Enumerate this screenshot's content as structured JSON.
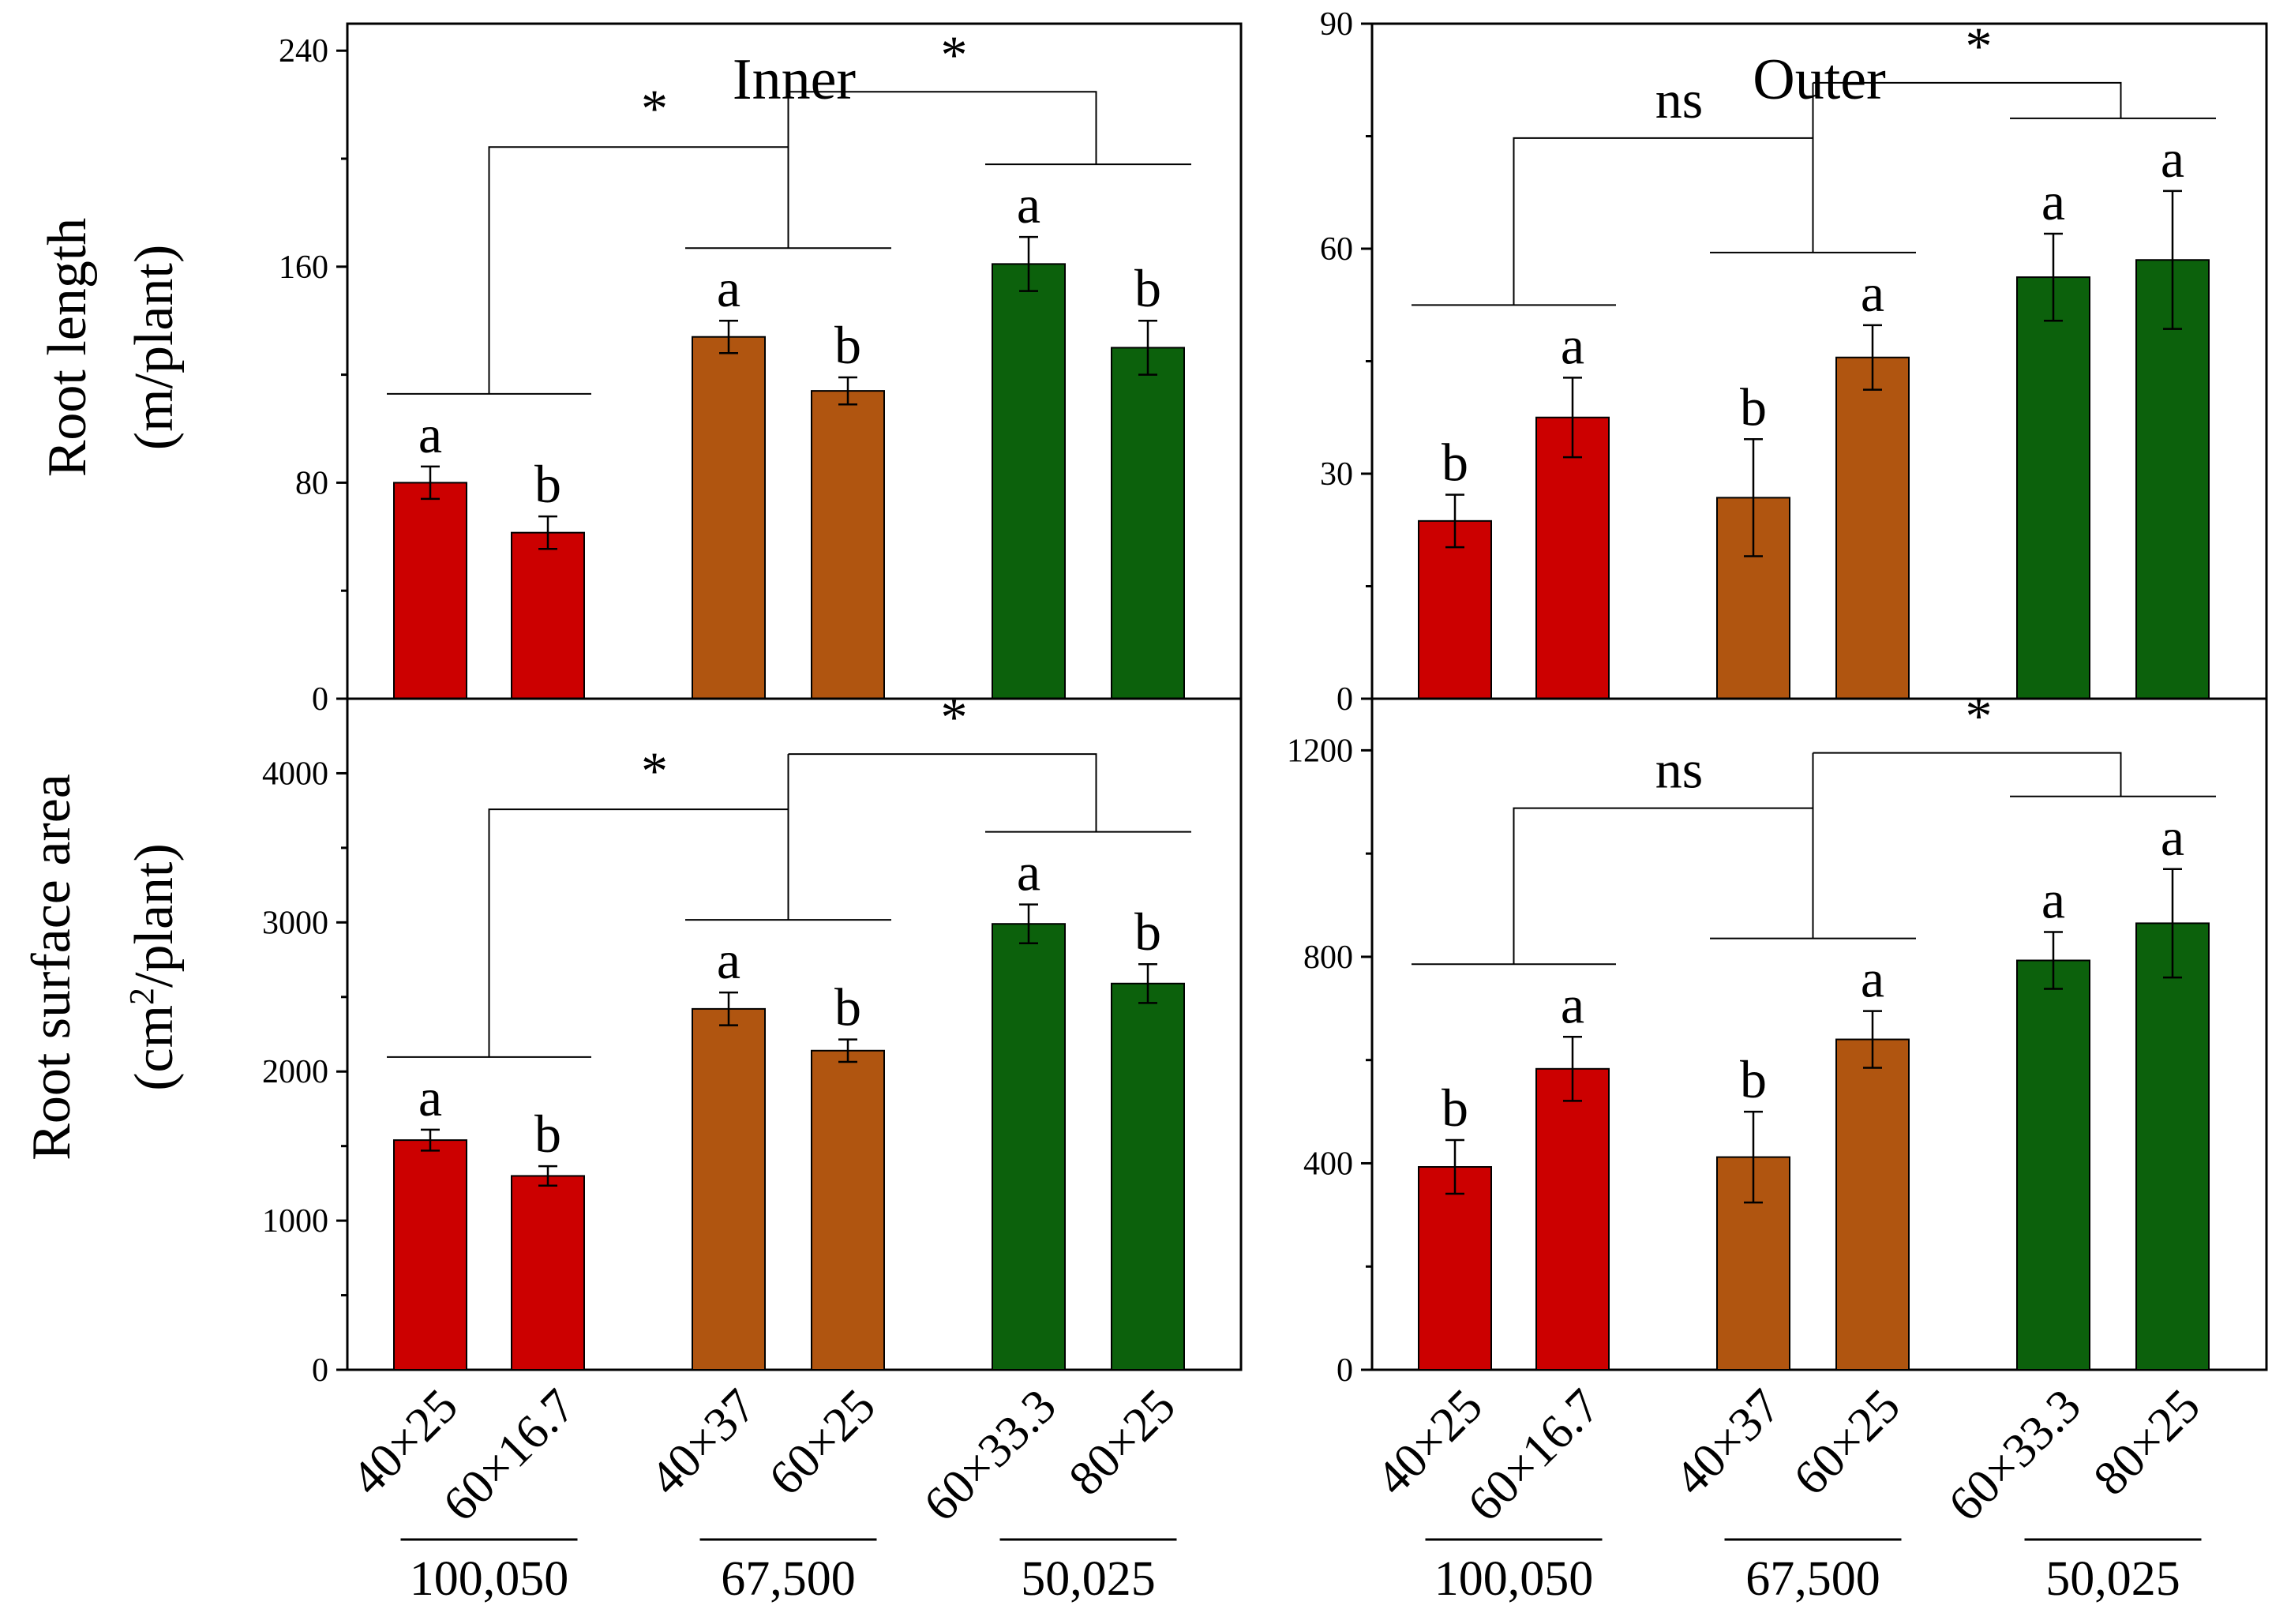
{
  "y_labels": {
    "top_line1": "Root length",
    "top_line2": "(m/plant)",
    "bottom_line1": "Root surface area",
    "bottom_line2_pre": "(cm",
    "bottom_line2_sup": "2",
    "bottom_line2_post": "/plant)"
  },
  "categories": [
    "40×25",
    "60×16.7",
    "40×37",
    "60×25",
    "60×33.3",
    "80×25"
  ],
  "groups": [
    "100,050",
    "67,500",
    "50,025"
  ],
  "colors": {
    "red": "#cc0000",
    "brown": "#b05510",
    "green": "#0c610c",
    "bar_colors": [
      "#cc0000",
      "#cc0000",
      "#b05510",
      "#b05510",
      "#0c610c",
      "#0c610c"
    ]
  },
  "chart_data": [
    {
      "type": "bar",
      "panel": "top-left",
      "title": "Inner",
      "ylabel": "Root length (m/plant)",
      "categories": [
        "40×25",
        "60×16.7",
        "40×37",
        "60×25",
        "60×33.3",
        "80×25"
      ],
      "values": [
        80,
        61.5,
        134,
        114,
        161,
        130
      ],
      "errors": [
        6,
        6,
        6,
        5,
        10,
        10
      ],
      "letters": [
        "a",
        "b",
        "a",
        "b",
        "a",
        "b"
      ],
      "ylim": [
        0,
        250
      ],
      "yticks": [
        0,
        80,
        160,
        240
      ],
      "significance": [
        "*",
        "*"
      ]
    },
    {
      "type": "bar",
      "panel": "top-right",
      "title": "Outer",
      "ylabel": "",
      "categories": [
        "40×25",
        "60×16.7",
        "40×37",
        "60×25",
        "60×33.3",
        "80×25"
      ],
      "values": [
        23.7,
        37.5,
        26.8,
        45.5,
        56.2,
        58.5
      ],
      "errors": [
        3.5,
        5.3,
        7.8,
        4.3,
        5.8,
        9.2
      ],
      "letters": [
        "b",
        "a",
        "b",
        "a",
        "a",
        "a"
      ],
      "ylim": [
        0,
        90
      ],
      "yticks": [
        0,
        30,
        60,
        90
      ],
      "significance": [
        "ns",
        "*"
      ]
    },
    {
      "type": "bar",
      "panel": "bottom-left",
      "title": "",
      "ylabel": "Root surface area (cm2/plant)",
      "categories": [
        "40×25",
        "60×16.7",
        "40×37",
        "60×25",
        "60×33.3",
        "80×25"
      ],
      "values": [
        1540,
        1300,
        2420,
        2140,
        2990,
        2590
      ],
      "errors": [
        70,
        65,
        110,
        75,
        130,
        130
      ],
      "letters": [
        "a",
        "b",
        "a",
        "b",
        "a",
        "b"
      ],
      "ylim": [
        0,
        4500
      ],
      "yticks": [
        0,
        1000,
        2000,
        3000,
        4000
      ],
      "significance": [
        "*",
        "*"
      ]
    },
    {
      "type": "bar",
      "panel": "bottom-right",
      "title": "",
      "ylabel": "",
      "categories": [
        "40×25",
        "60×16.7",
        "40×37",
        "60×25",
        "60×33.3",
        "80×25"
      ],
      "values": [
        393,
        583,
        412,
        640,
        793,
        865
      ],
      "errors": [
        52,
        62,
        88,
        55,
        55,
        105
      ],
      "letters": [
        "b",
        "a",
        "b",
        "a",
        "a",
        "a"
      ],
      "ylim": [
        0,
        1300
      ],
      "yticks": [
        0,
        400,
        800,
        1200
      ],
      "significance": [
        "ns",
        "*"
      ]
    }
  ]
}
